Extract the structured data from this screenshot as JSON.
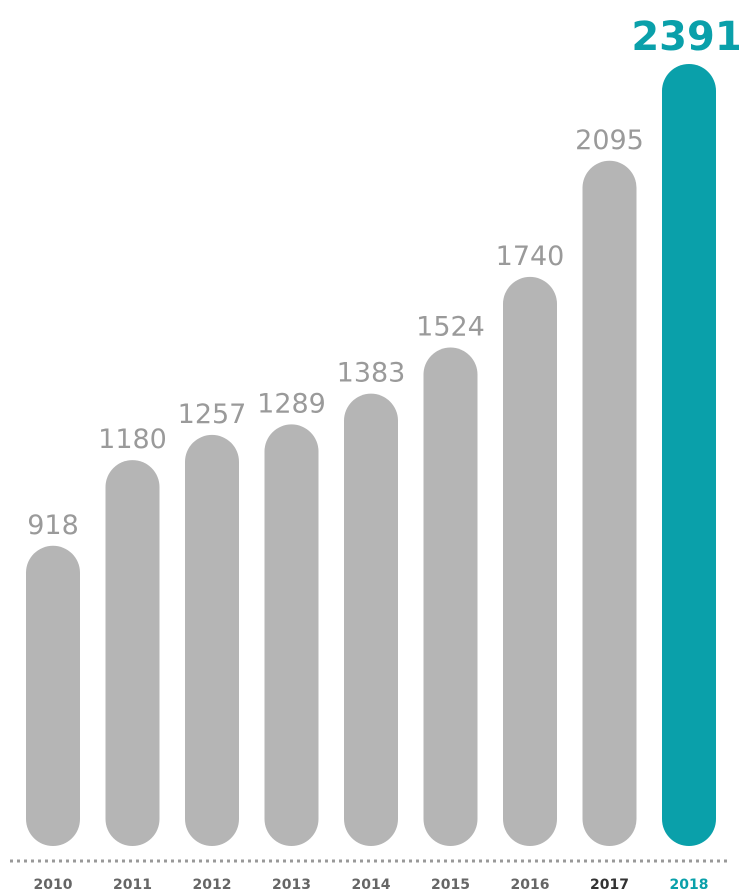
{
  "chart_data": {
    "type": "bar",
    "categories": [
      "2010",
      "2011",
      "2012",
      "2013",
      "2014",
      "2015",
      "2016",
      "2017",
      "2018"
    ],
    "values": [
      918,
      1180,
      1257,
      1289,
      1383,
      1524,
      1740,
      2095,
      2391
    ],
    "highlight_index": 8,
    "title": "",
    "xlabel": "",
    "ylabel": "",
    "ylim": [
      0,
      2391
    ],
    "grid": false,
    "legend": "none",
    "colors": {
      "bar": "#b5b5b5",
      "highlight": "#0aa0aa",
      "value_text": "#9a9a9a",
      "category_text": "#666666",
      "category_text_emphasis": "#333333",
      "baseline": "#999999"
    }
  }
}
